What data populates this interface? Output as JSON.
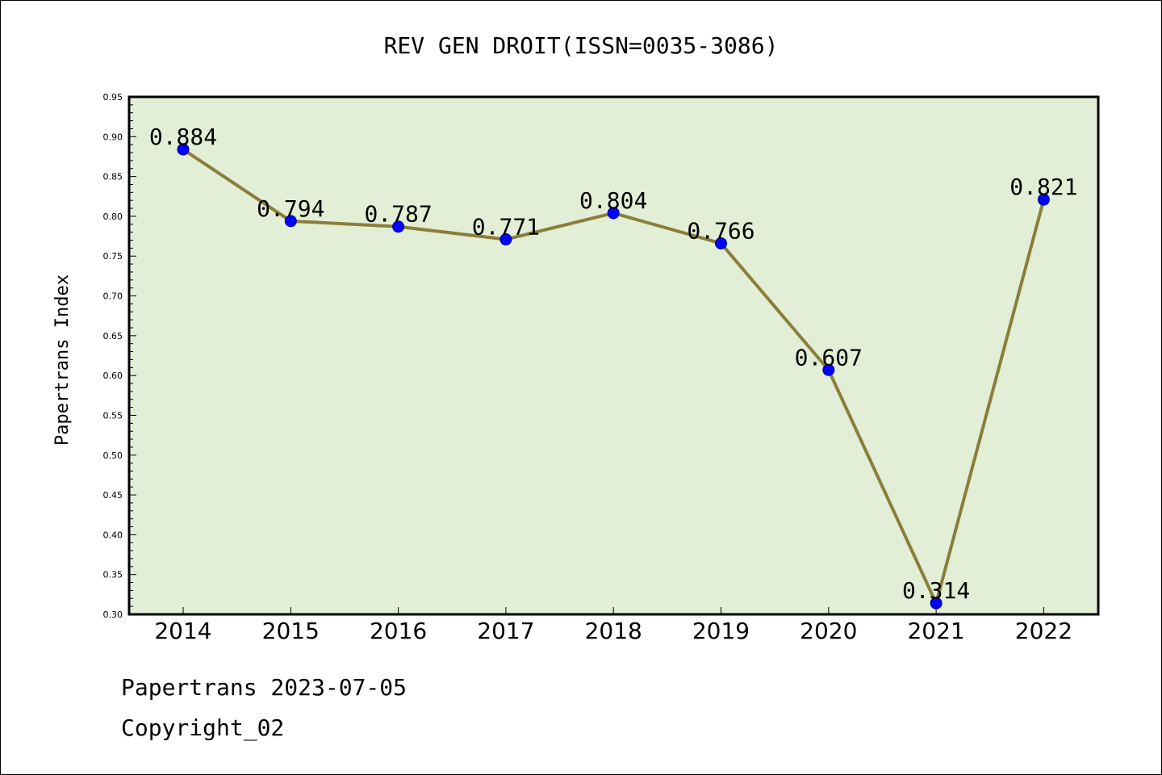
{
  "chart_data": {
    "type": "line",
    "title": "REV GEN DROIT(ISSN=0035-3086)",
    "xlabel": "",
    "ylabel": "Papertrans Index",
    "categories": [
      "2014",
      "2015",
      "2016",
      "2017",
      "2018",
      "2019",
      "2020",
      "2021",
      "2022"
    ],
    "series": [
      {
        "values": [
          0.884,
          0.794,
          0.787,
          0.771,
          0.804,
          0.766,
          0.607,
          0.314,
          0.821
        ],
        "labels": [
          "0.884",
          "0.794",
          "0.787",
          "0.771",
          "0.804",
          "0.766",
          "0.607",
          "0.314",
          "0.821"
        ]
      }
    ],
    "ylim": [
      0.3,
      0.95
    ],
    "yticks": [
      "0.30",
      "0.35",
      "0.40",
      "0.45",
      "0.50",
      "0.55",
      "0.60",
      "0.65",
      "0.70",
      "0.75",
      "0.80",
      "0.85",
      "0.90",
      "0.95"
    ],
    "grid": false,
    "colors": {
      "plot_background": "#e2efd6",
      "line": "#8b7d3a",
      "marker": "#0000ff",
      "axis": "#000000"
    }
  },
  "footer": {
    "date_line": "Papertrans 2023-07-05",
    "copyright_line": "Copyright_02"
  }
}
